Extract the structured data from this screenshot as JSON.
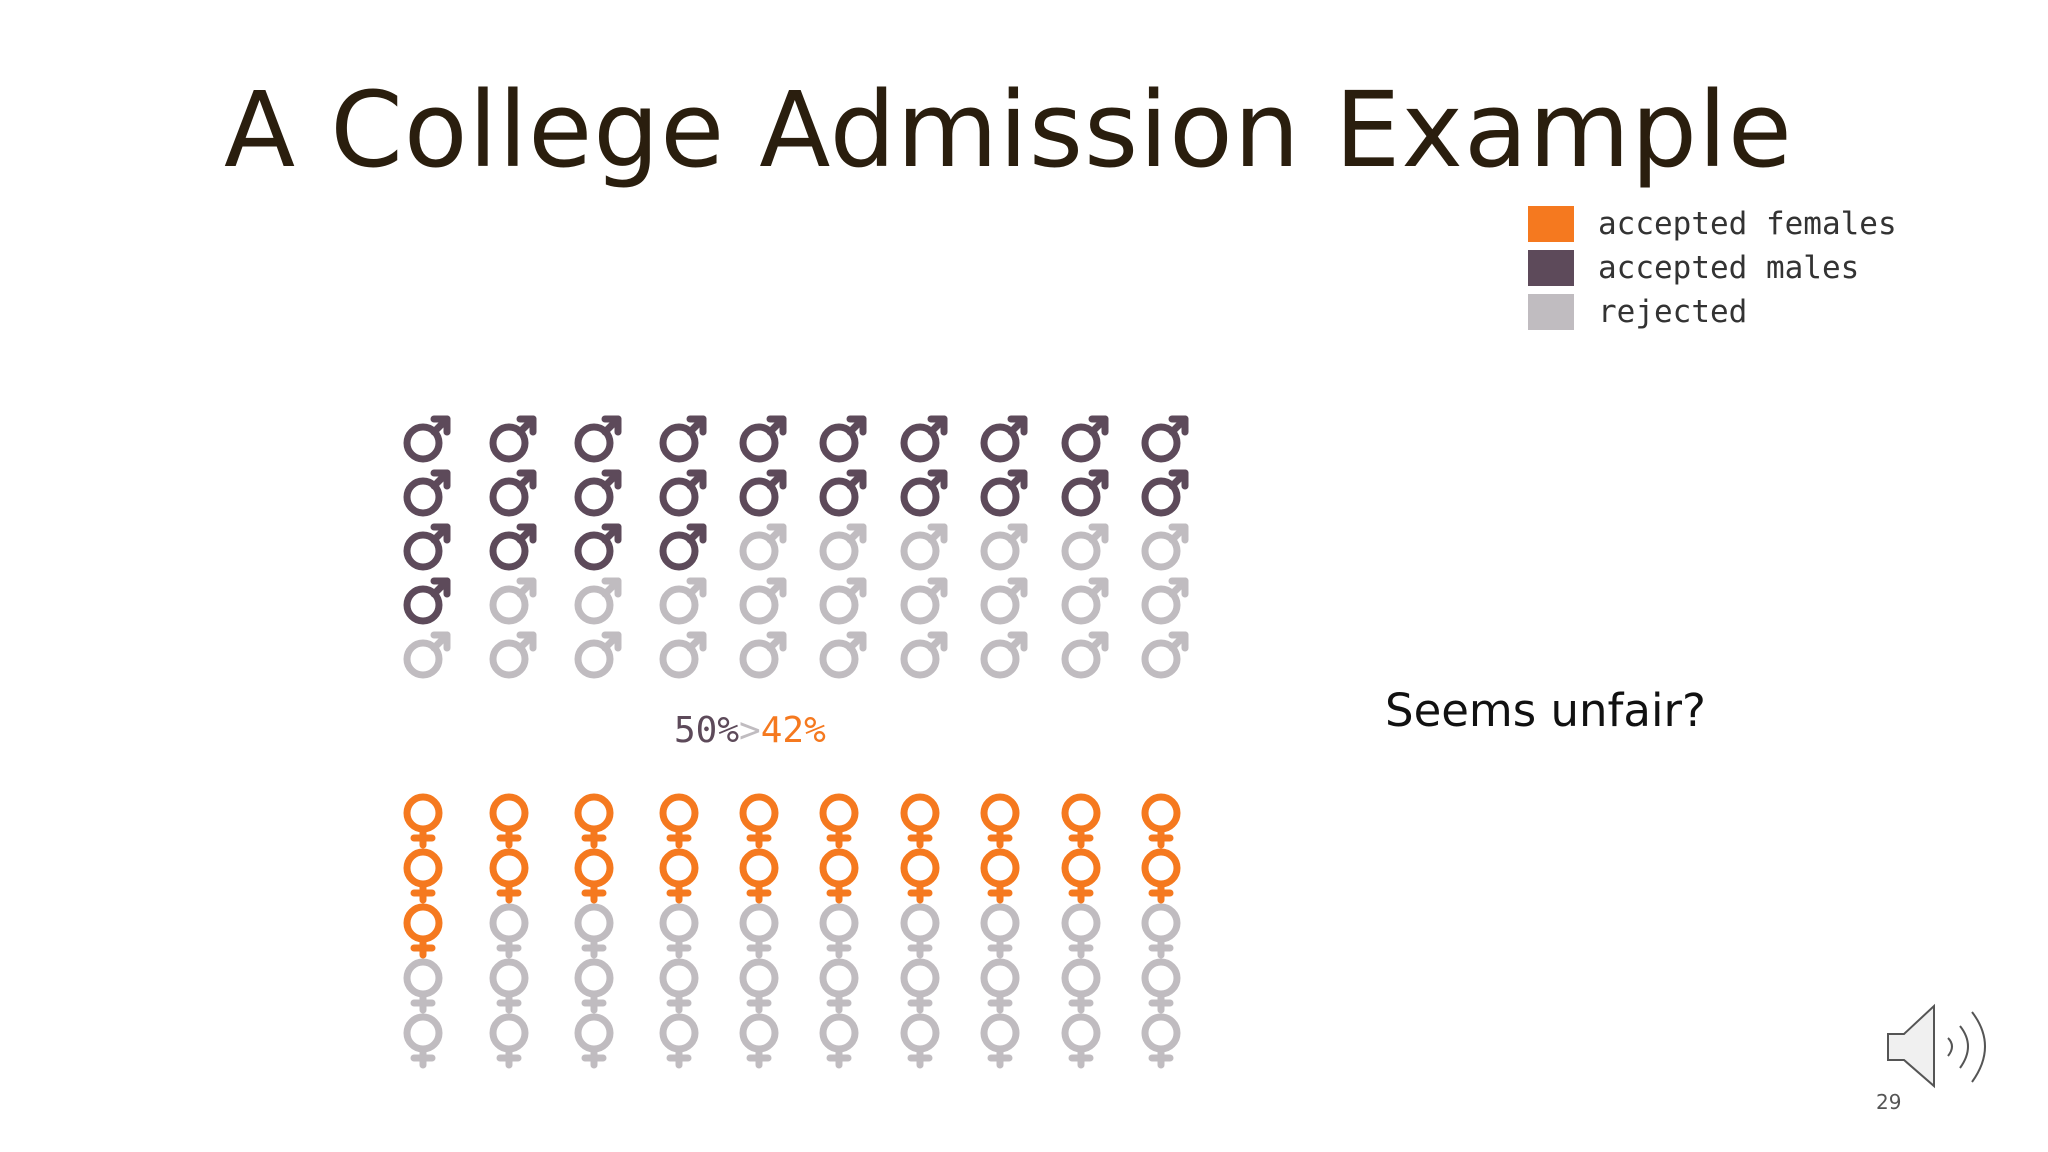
{
  "slide": {
    "title": "A College Admission Example",
    "note": "Seems unfair?",
    "slide_number": "29",
    "speaker_icon": "speaker-volume-icon"
  },
  "legend": [
    {
      "label": "accepted females",
      "color": "#f5791f"
    },
    {
      "label": "accepted males",
      "color": "#5d4a5a"
    },
    {
      "label": "rejected",
      "color": "#c0bcc0"
    }
  ],
  "comparison": {
    "male_rate": "50%",
    "symbol": ">",
    "female_rate": "42%",
    "male_color": "#5d4a5a",
    "symbol_color": "#c0bcc0",
    "female_color": "#f5791f"
  },
  "chart_data": {
    "type": "pictograph",
    "rows": 5,
    "columns": 10,
    "series": [
      {
        "name": "males",
        "total": 50,
        "accepted": 25,
        "accepted_per_column": [
          4,
          3,
          3,
          3,
          2,
          2,
          2,
          2,
          2,
          2
        ],
        "accepted_color": "#5d4a5a",
        "rejected_color": "#c0bcc0"
      },
      {
        "name": "females",
        "total": 50,
        "accepted": 21,
        "accepted_per_column": [
          3,
          2,
          2,
          2,
          2,
          2,
          2,
          2,
          2,
          2
        ],
        "accepted_color": "#f5791f",
        "rejected_color": "#c0bcc0"
      }
    ]
  }
}
